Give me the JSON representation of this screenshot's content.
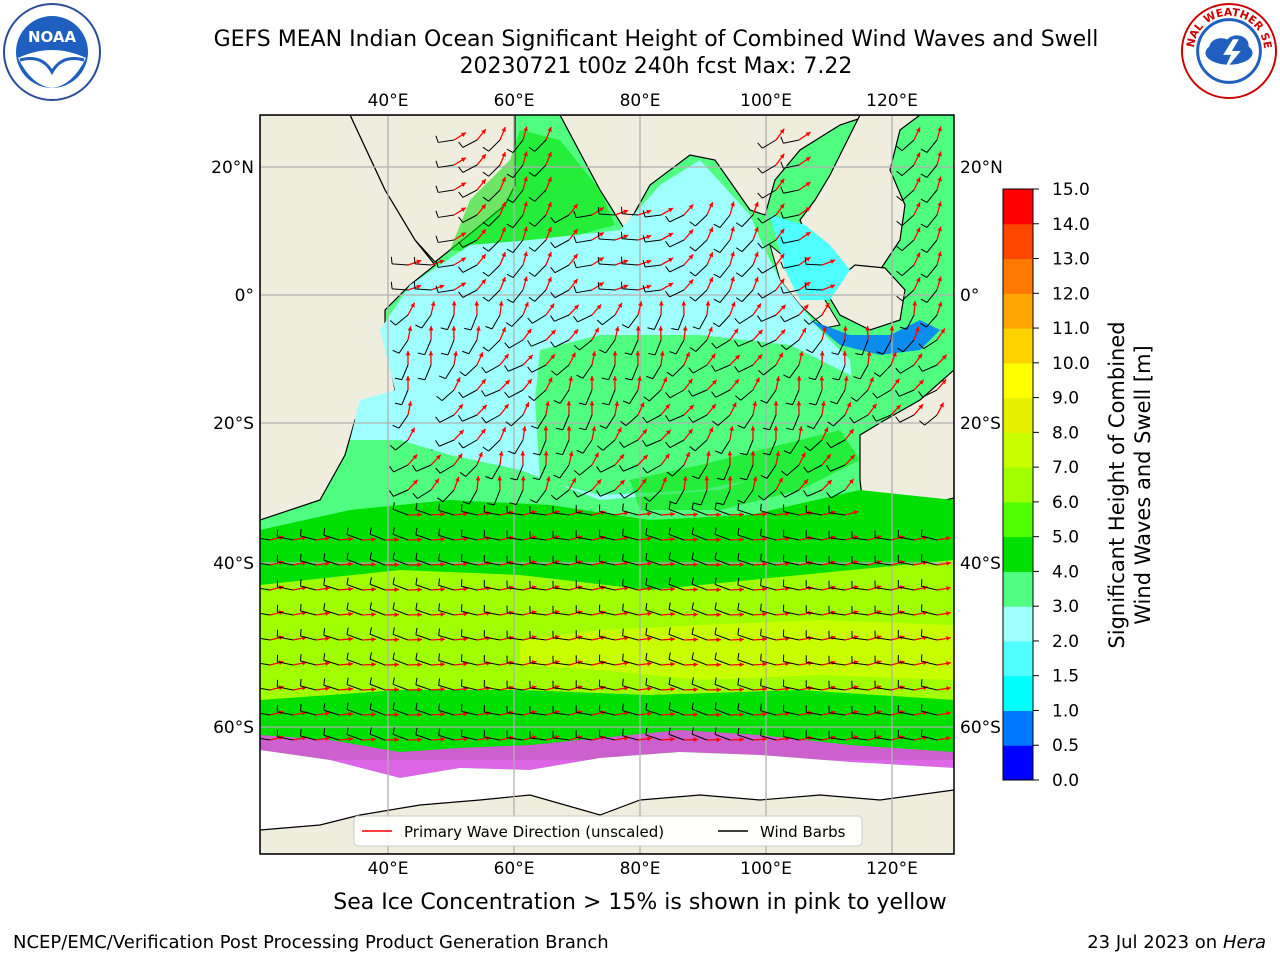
{
  "title": {
    "line1": "GEFS MEAN Indian Ocean Significant Height of Combined Wind Waves and Swell",
    "line2": "20230721 t00z 240h fcst   Max: 7.22"
  },
  "logos": {
    "left": {
      "icon": "noaa-logo",
      "text": "NOAA"
    },
    "right": {
      "icon": "nws-logo",
      "text": "NATIONAL WEATHER SERVICE"
    }
  },
  "map": {
    "lon_ticks": [
      "40°E",
      "60°E",
      "80°E",
      "100°E",
      "120°E"
    ],
    "lat_ticks": [
      "20°N",
      "0°",
      "20°S",
      "40°S",
      "60°S"
    ],
    "extent": {
      "lon": [
        20,
        130
      ],
      "lat": [
        -70,
        27
      ]
    },
    "colors": {
      "land": "#efeede",
      "ice": "#ffffff",
      "grid": "#b0b0b0",
      "wave_arrow": "#ff0000",
      "wind_barb": "#000000"
    }
  },
  "colorbar": {
    "levels": [
      "0.0",
      "0.5",
      "1.0",
      "1.5",
      "2.0",
      "3.0",
      "4.0",
      "5.0",
      "6.0",
      "7.0",
      "8.0",
      "9.0",
      "10.0",
      "11.0",
      "12.0",
      "13.0",
      "14.0",
      "15.0"
    ],
    "colors": [
      "#0000ff",
      "#0078ff",
      "#00ffff",
      "#50ffff",
      "#a0ffff",
      "#50ff80",
      "#00e000",
      "#50ff00",
      "#a0ff00",
      "#c8ff00",
      "#e6f000",
      "#ffff00",
      "#ffd200",
      "#ffa500",
      "#ff7800",
      "#ff4600",
      "#ff0000"
    ],
    "label_line1": "Significant Height of Combined",
    "label_line2": "Wind Waves and Swell [m]"
  },
  "legend": {
    "wave_label": "Primary Wave Direction (unscaled)",
    "wind_label": "Wind Barbs"
  },
  "caption": "Sea Ice Concentration > 15% is shown in pink to yellow",
  "footer": {
    "left": "NCEP/EMC/Verification Post Processing Product Generation Branch",
    "right_prefix": "23 Jul 2023 on ",
    "right_host": "Hera"
  }
}
